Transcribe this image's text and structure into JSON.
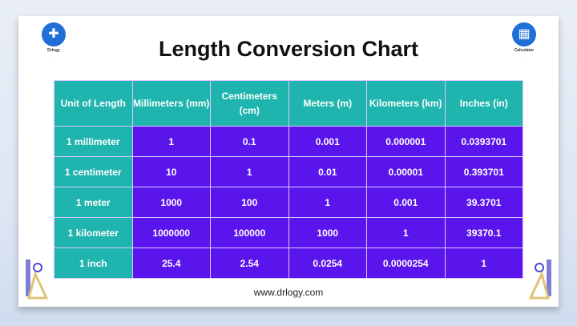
{
  "title": "Length Conversion Chart",
  "logo_left": {
    "label": "Drlogy",
    "icon": "drlogy-logo-icon"
  },
  "logo_right": {
    "label": "Calculator",
    "icon": "calculator-icon"
  },
  "table": {
    "headers": [
      "Unit of Length",
      "Millimeters (mm)",
      "Centimeters (cm)",
      "Meters (m)",
      "Kilometers (km)",
      "Inches (in)"
    ],
    "rows": [
      [
        "1 millimeter",
        "1",
        "0.1",
        "0.001",
        "0.000001",
        "0.0393701"
      ],
      [
        "1 centimeter",
        "10",
        "1",
        "0.01",
        "0.00001",
        "0.393701"
      ],
      [
        "1 meter",
        "1000",
        "100",
        "1",
        "0.001",
        "39.3701"
      ],
      [
        "1 kilometer",
        "1000000",
        "100000",
        "1000",
        "1",
        "39370.1"
      ],
      [
        "1 inch",
        "25.4",
        "2.54",
        "0.0254",
        "0.0000254",
        "1"
      ]
    ]
  },
  "footer_url": "www.drlogy.com",
  "colors": {
    "header": "#1fb4ad",
    "cell": "#5a14ec"
  }
}
